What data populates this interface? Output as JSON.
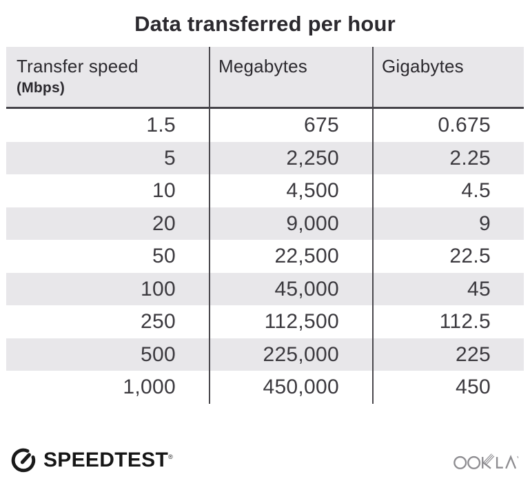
{
  "title": "Data transferred per hour",
  "table": {
    "columns": [
      {
        "label": "Transfer speed",
        "unit": "(Mbps)"
      },
      {
        "label": "Megabytes",
        "unit": ""
      },
      {
        "label": "Gigabytes",
        "unit": ""
      }
    ],
    "rows": [
      [
        "1.5",
        "675",
        "0.675"
      ],
      [
        "5",
        "2,250",
        "2.25"
      ],
      [
        "10",
        "4,500",
        "4.5"
      ],
      [
        "20",
        "9,000",
        "9"
      ],
      [
        "50",
        "22,500",
        "22.5"
      ],
      [
        "100",
        "45,000",
        "45"
      ],
      [
        "250",
        "112,500",
        "112.5"
      ],
      [
        "500",
        "225,000",
        "225"
      ],
      [
        "1,000",
        "450,000",
        "450"
      ]
    ]
  },
  "chart_data": {
    "type": "table",
    "title": "Data transferred per hour",
    "columns": [
      "Transfer speed (Mbps)",
      "Megabytes",
      "Gigabytes"
    ],
    "rows": [
      [
        1.5,
        675,
        0.675
      ],
      [
        5,
        2250,
        2.25
      ],
      [
        10,
        4500,
        4.5
      ],
      [
        20,
        9000,
        9
      ],
      [
        50,
        22500,
        22.5
      ],
      [
        100,
        45000,
        45
      ],
      [
        250,
        112500,
        112.5
      ],
      [
        500,
        225000,
        225
      ],
      [
        1000,
        450000,
        450
      ]
    ]
  },
  "footer": {
    "speedtest_label": "SPEEDTEST",
    "speedtest_mark": "®",
    "ookla_label": "OOKLA",
    "ookla_mark": "®"
  },
  "colors": {
    "stripe": "#e8e7ea",
    "header_bg": "#e8e7ea",
    "divider": "#4a484d",
    "header_rule": "#454349",
    "title_text": "#2b292e",
    "number_text": "#3b393e",
    "speedtest_black": "#161616",
    "ookla_gray": "#8d8c90"
  }
}
